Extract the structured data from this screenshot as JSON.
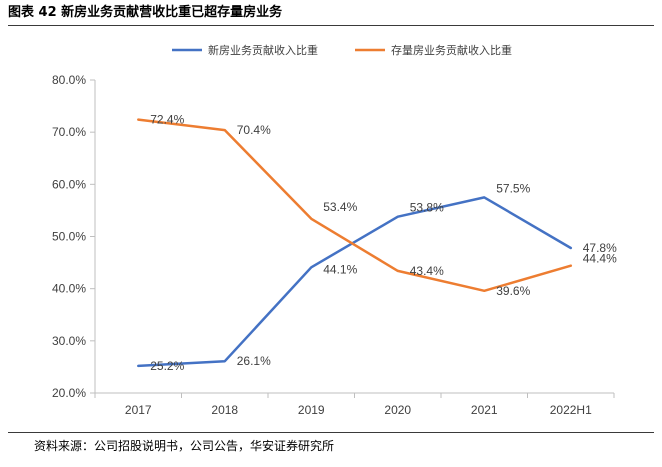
{
  "figure": {
    "title": "图表 42  新房业务贡献营收比重已超存量房业务",
    "source": "资料来源：公司招股说明书，公司公告，华安证券研究所"
  },
  "colors": {
    "new_house": "#4472C4",
    "existing_house": "#ED7D31",
    "axis": "#bfbfbf",
    "text": "#404040"
  },
  "chart_data": {
    "type": "line",
    "title": "",
    "xlabel": "",
    "ylabel": "",
    "categories": [
      "2017",
      "2018",
      "2019",
      "2020",
      "2021",
      "2022H1"
    ],
    "y_ticks": [
      "20.0%",
      "30.0%",
      "40.0%",
      "50.0%",
      "60.0%",
      "70.0%",
      "80.0%"
    ],
    "ylim": [
      20,
      80
    ],
    "grid": false,
    "legend_position": "top",
    "series": [
      {
        "name": "新房业务贡献收入比重",
        "color": "#4472C4",
        "values": [
          25.2,
          26.1,
          44.1,
          53.8,
          57.5,
          47.8
        ],
        "labels": [
          "25.2%",
          "26.1%",
          "44.1%",
          "53.8%",
          "57.5%",
          "47.8%"
        ]
      },
      {
        "name": "存量房业务贡献收入比重",
        "color": "#ED7D31",
        "values": [
          72.4,
          70.4,
          53.4,
          43.4,
          39.6,
          44.4
        ],
        "labels": [
          "72.4%",
          "70.4%",
          "53.4%",
          "43.4%",
          "39.6%",
          "44.4%"
        ]
      }
    ]
  }
}
